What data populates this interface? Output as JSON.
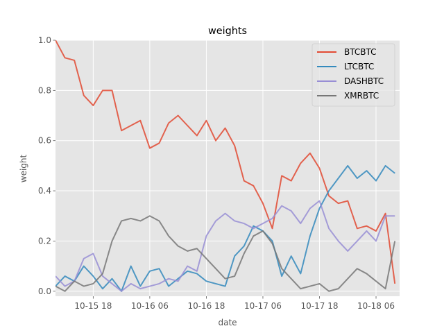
{
  "chart_data": {
    "type": "line",
    "title": "weights",
    "xlabel": "date",
    "ylabel": "weight",
    "grid": true,
    "legend": "top-right",
    "xlim": [
      "2017-10-15 10:00",
      "2017-10-18 11:00"
    ],
    "ylim": [
      -0.02,
      1.0
    ],
    "x_ticks": [
      {
        "label": "10-15 18",
        "hour": 18
      },
      {
        "label": "10-16 06",
        "hour": 30
      },
      {
        "label": "10-16 18",
        "hour": 42
      },
      {
        "label": "10-17 06",
        "hour": 54
      },
      {
        "label": "10-17 18",
        "hour": 66
      },
      {
        "label": "10-18 06",
        "hour": 78
      }
    ],
    "y_ticks": [
      "0.0",
      "0.2",
      "0.4",
      "0.6",
      "0.8",
      "1.0"
    ],
    "x_hours": [
      10,
      12,
      14,
      16,
      18,
      20,
      22,
      24,
      26,
      28,
      30,
      32,
      34,
      36,
      38,
      40,
      42,
      44,
      46,
      48,
      50,
      52,
      54,
      56,
      58,
      60,
      62,
      64,
      66,
      68,
      70,
      72,
      74,
      76,
      78,
      80,
      82
    ],
    "series": [
      {
        "name": "BTCBTC",
        "color": "#E24A33",
        "values": [
          1.0,
          0.93,
          0.92,
          0.78,
          0.74,
          0.8,
          0.8,
          0.64,
          0.66,
          0.68,
          0.57,
          0.59,
          0.67,
          0.7,
          0.66,
          0.62,
          0.68,
          0.6,
          0.65,
          0.58,
          0.44,
          0.42,
          0.35,
          0.25,
          0.46,
          0.44,
          0.51,
          0.55,
          0.49,
          0.38,
          0.35,
          0.36,
          0.25,
          0.26,
          0.24,
          0.31,
          0.03
        ]
      },
      {
        "name": "LTCBTC",
        "color": "#348ABD",
        "values": [
          0.02,
          0.06,
          0.04,
          0.1,
          0.06,
          0.01,
          0.05,
          0.0,
          0.1,
          0.02,
          0.08,
          0.09,
          0.02,
          0.05,
          0.08,
          0.07,
          0.04,
          0.03,
          0.02,
          0.14,
          0.18,
          0.26,
          0.24,
          0.2,
          0.06,
          0.14,
          0.07,
          0.22,
          0.33,
          0.4,
          0.45,
          0.5,
          0.45,
          0.48,
          0.44,
          0.5,
          0.47
        ]
      },
      {
        "name": "DASHBTC",
        "color": "#988ED5",
        "values": [
          0.06,
          0.02,
          0.04,
          0.13,
          0.15,
          0.06,
          0.03,
          0.0,
          0.03,
          0.01,
          0.02,
          0.03,
          0.05,
          0.04,
          0.1,
          0.08,
          0.22,
          0.28,
          0.31,
          0.28,
          0.27,
          0.25,
          0.27,
          0.29,
          0.34,
          0.32,
          0.27,
          0.33,
          0.36,
          0.25,
          0.2,
          0.16,
          0.2,
          0.24,
          0.2,
          0.3,
          0.3
        ]
      },
      {
        "name": "XMRBTC",
        "color": "#777777",
        "values": [
          0.02,
          0.0,
          0.04,
          0.02,
          0.03,
          0.07,
          0.2,
          0.28,
          0.29,
          0.28,
          0.3,
          0.28,
          0.22,
          0.18,
          0.16,
          0.17,
          0.13,
          0.09,
          0.05,
          0.06,
          0.15,
          0.22,
          0.24,
          0.19,
          0.09,
          0.05,
          0.01,
          0.02,
          0.03,
          0.0,
          0.01,
          0.05,
          0.09,
          0.07,
          0.04,
          0.01,
          0.2
        ]
      }
    ]
  }
}
